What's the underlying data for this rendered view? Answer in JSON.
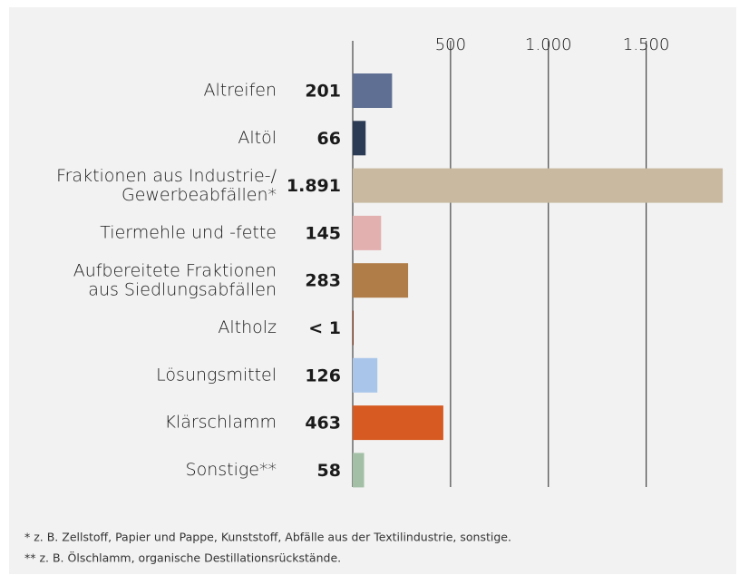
{
  "chart_data": {
    "type": "barh",
    "categories": [
      "Altreifen",
      "Altöl",
      "Fraktionen aus Industrie-/\nGewerbeabfällen*",
      "Tiermehle und -fette",
      "Aufbereitete Fraktionen\naus Siedlungsabfällen",
      "Altholz",
      "Lösungsmittel",
      "Klärschlamm",
      "Sonstige**"
    ],
    "values": [
      201,
      66,
      1891,
      145,
      283,
      0.5,
      126,
      463,
      58
    ],
    "value_labels": [
      "201",
      "66",
      "1.891",
      "145",
      "283",
      "< 1",
      "126",
      "463",
      "58"
    ],
    "colors": [
      "#5e6f93",
      "#2b3a55",
      "#c9b9a0",
      "#e3b0b0",
      "#b07d48",
      "#8b3a1e",
      "#a9c6ea",
      "#d65a22",
      "#a3bfa6"
    ],
    "xlim": [
      0,
      1900
    ],
    "xticks": [
      {
        "value": 500,
        "label": "500"
      },
      {
        "value": 1000,
        "label": "1.000"
      },
      {
        "value": 1500,
        "label": "1.500"
      }
    ],
    "footnotes": [
      "* z. B. Zellstoff, Papier und Pappe, Kunststoff, Abfälle aus der Textilindustrie, sonstige.",
      "** z. B. Ölschlamm, organische Destillationsrückstände."
    ]
  }
}
